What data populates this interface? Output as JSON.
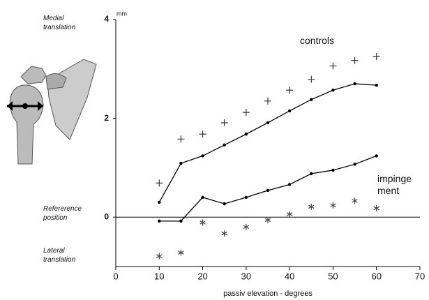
{
  "chart_data": {
    "type": "line",
    "y_unit": "mm",
    "x_label": "passiv elevation - degrees",
    "y_side_labels": {
      "top": "Medial translation",
      "middle": "Refererence position",
      "bottom": "Lateral translation"
    },
    "x": [
      10,
      15,
      20,
      25,
      30,
      35,
      40,
      45,
      50,
      55,
      60
    ],
    "series": [
      {
        "name": "controls",
        "color": "#000000",
        "marker": "+",
        "values": [
          0.3,
          1.09,
          1.24,
          1.46,
          1.68,
          1.91,
          2.15,
          2.38,
          2.57,
          2.7,
          2.67
        ],
        "marker_values": [
          0.69,
          1.58,
          1.68,
          1.91,
          2.12,
          2.35,
          2.57,
          2.79,
          3.06,
          3.17,
          3.25
        ]
      },
      {
        "name": "impinge ment",
        "color": "#000000",
        "marker": "*",
        "values": [
          -0.08,
          -0.08,
          0.4,
          0.27,
          0.4,
          0.54,
          0.66,
          0.88,
          0.95,
          1.07,
          1.24
        ],
        "marker_values": [
          -0.79,
          -0.72,
          -0.11,
          -0.33,
          -0.2,
          -0.06,
          0.06,
          0.21,
          0.24,
          0.33,
          0.18
        ]
      }
    ],
    "xlim": [
      0,
      70
    ],
    "xticks": [
      0,
      10,
      20,
      30,
      40,
      50,
      60,
      70
    ],
    "ylim": [
      -1,
      4
    ],
    "yticks": [
      0,
      2,
      4
    ],
    "reference_line": 0,
    "grid": false
  }
}
